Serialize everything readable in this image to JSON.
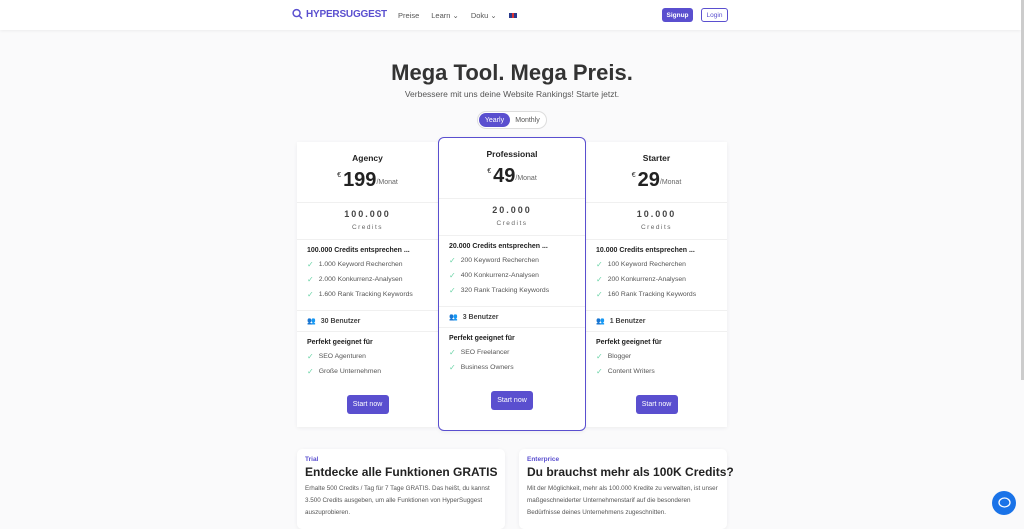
{
  "nav": {
    "logo": "HYPERSUGGEST",
    "links": [
      {
        "label": "Preise"
      },
      {
        "label": "Learn ⌄"
      },
      {
        "label": "Doku ⌄"
      }
    ],
    "signup": "Signup",
    "login": "Login"
  },
  "hero": {
    "title": "Mega Tool. Mega Preis.",
    "subtitle": "Verbessere mit uns deine Website Rankings! Starte jetzt.",
    "toggle": [
      "Yearly",
      "Monthly"
    ]
  },
  "accent": "#5a4fcf",
  "plans": [
    {
      "name": "Agency",
      "currency": "€",
      "price": "199",
      "per": "/Monat",
      "credits": "100.000",
      "credits_label": "Credits",
      "features_head": "100.000 Credits entsprechen ...",
      "features": [
        "1.000 Keyword Recherchen",
        "2.000 Konkurrenz-Analysen",
        "1.600 Rank Tracking Keywords"
      ],
      "users": "30 Benutzer",
      "fit_head": "Perfekt geeignet für",
      "fit": [
        "SEO Agenturen",
        "Große Unternehmen"
      ],
      "cta": "Start now"
    },
    {
      "name": "Professional",
      "currency": "€",
      "price": "49",
      "per": "/Monat",
      "credits": "20.000",
      "credits_label": "Credits",
      "features_head": "20.000 Credits entsprechen ...",
      "features": [
        "200 Keyword Recherchen",
        "400 Konkurrenz-Analysen",
        "320 Rank Tracking Keywords"
      ],
      "users": "3 Benutzer",
      "fit_head": "Perfekt geeignet für",
      "fit": [
        "SEO Freelancer",
        "Business Owners"
      ],
      "cta": "Start now"
    },
    {
      "name": "Starter",
      "currency": "€",
      "price": "29",
      "per": "/Monat",
      "credits": "10.000",
      "credits_label": "Credits",
      "features_head": "10.000 Credits entsprechen ...",
      "features": [
        "100 Keyword Recherchen",
        "200 Konkurrenz-Analysen",
        "160 Rank Tracking Keywords"
      ],
      "users": "1 Benutzer",
      "fit_head": "Perfekt geeignet für",
      "fit": [
        "Blogger",
        "Content Writers"
      ],
      "cta": "Start now"
    }
  ],
  "trial": {
    "tag": "Trial",
    "title": "Entdecke alle Funktionen GRATIS",
    "text": "Erhalte 500 Credits / Tag für 7 Tage GRATIS. Das heißt, du kannst 3.500 Credits ausgeben, um alle Funktionen von HyperSuggest auszuprobieren."
  },
  "enterprise": {
    "tag": "Enterprice",
    "title": "Du brauchst mehr als 100K Credits?",
    "text": "Mit der Möglichkeit, mehr als 100.000 Kredite zu verwalten, ist unser maßgeschneiderter Unternehmenstarif auf die besonderen Bedürfnisse deines Unternehmens zugeschnitten."
  }
}
